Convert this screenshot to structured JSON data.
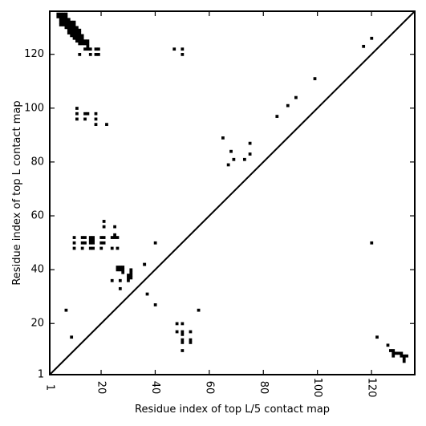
{
  "chart_data": {
    "type": "scatter",
    "xlabel": "Residue index of top L/5 contact map",
    "ylabel": "Residue index of top L contact map",
    "xlim": [
      1,
      136
    ],
    "ylim": [
      1,
      136
    ],
    "x_ticks": [
      1,
      20,
      40,
      60,
      80,
      100,
      120
    ],
    "y_ticks": [
      1,
      20,
      40,
      60,
      80,
      100,
      120
    ],
    "x_tick_labels": [
      "1",
      "20",
      "40",
      "60",
      "80",
      "100",
      "120"
    ],
    "y_tick_labels": [
      "1",
      "20",
      "40",
      "60",
      "80",
      "100",
      "120"
    ],
    "diagonal_line": true,
    "grid": false,
    "marker": "square",
    "colors": {
      "marker": "#000000",
      "axis": "#000000"
    },
    "series": [
      {
        "points_upper": [
          [
            4,
            135
          ],
          [
            5,
            135
          ],
          [
            6,
            135
          ],
          [
            7,
            135
          ],
          [
            4,
            134
          ],
          [
            5,
            134
          ],
          [
            6,
            134
          ],
          [
            7,
            134
          ],
          [
            5,
            133
          ],
          [
            6,
            133
          ],
          [
            7,
            133
          ],
          [
            8,
            133
          ],
          [
            5,
            132
          ],
          [
            6,
            132
          ],
          [
            7,
            132
          ],
          [
            8,
            132
          ],
          [
            9,
            132
          ],
          [
            10,
            132
          ],
          [
            5,
            131
          ],
          [
            6,
            131
          ],
          [
            7,
            131
          ],
          [
            8,
            131
          ],
          [
            9,
            131
          ],
          [
            10,
            131
          ],
          [
            7,
            130
          ],
          [
            8,
            130
          ],
          [
            9,
            130
          ],
          [
            10,
            130
          ],
          [
            11,
            130
          ],
          [
            8,
            129
          ],
          [
            9,
            129
          ],
          [
            10,
            129
          ],
          [
            11,
            129
          ],
          [
            12,
            129
          ],
          [
            8,
            128
          ],
          [
            9,
            128
          ],
          [
            10,
            128
          ],
          [
            11,
            128
          ],
          [
            12,
            128
          ],
          [
            9,
            127
          ],
          [
            10,
            127
          ],
          [
            11,
            127
          ],
          [
            12,
            127
          ],
          [
            13,
            127
          ],
          [
            10,
            126
          ],
          [
            11,
            126
          ],
          [
            12,
            126
          ],
          [
            13,
            126
          ],
          [
            11,
            125
          ],
          [
            12,
            125
          ],
          [
            13,
            125
          ],
          [
            14,
            125
          ],
          [
            15,
            125
          ],
          [
            12,
            124
          ],
          [
            13,
            124
          ],
          [
            14,
            124
          ],
          [
            15,
            124
          ],
          [
            15,
            123
          ],
          [
            14,
            122
          ],
          [
            15,
            122
          ],
          [
            16,
            122
          ],
          [
            18,
            122
          ],
          [
            19,
            122
          ],
          [
            12,
            120
          ],
          [
            16,
            120
          ],
          [
            18,
            120
          ],
          [
            19,
            120
          ],
          [
            47,
            122
          ],
          [
            50,
            122
          ],
          [
            50,
            120
          ],
          [
            120,
            126
          ],
          [
            117,
            123
          ],
          [
            99,
            111
          ],
          [
            11,
            100
          ],
          [
            11,
            98
          ],
          [
            14,
            98
          ],
          [
            15,
            98
          ],
          [
            18,
            98
          ],
          [
            11,
            96
          ],
          [
            14,
            96
          ],
          [
            18,
            96
          ],
          [
            18,
            94
          ],
          [
            22,
            94
          ],
          [
            92,
            104
          ],
          [
            89,
            101
          ],
          [
            85,
            97
          ],
          [
            65,
            89
          ],
          [
            75,
            87
          ],
          [
            68,
            84
          ],
          [
            75,
            83
          ],
          [
            69,
            81
          ],
          [
            73,
            81
          ],
          [
            67,
            79
          ],
          [
            21,
            58
          ],
          [
            21,
            56
          ],
          [
            25,
            56
          ],
          [
            25,
            53
          ],
          [
            10,
            52
          ],
          [
            13,
            52
          ],
          [
            14,
            52
          ],
          [
            16,
            52
          ],
          [
            17,
            52
          ],
          [
            20,
            52
          ],
          [
            21,
            52
          ],
          [
            24,
            52
          ],
          [
            25,
            52
          ],
          [
            26,
            52
          ],
          [
            16,
            51
          ],
          [
            17,
            51
          ],
          [
            10,
            50
          ],
          [
            13,
            50
          ],
          [
            14,
            50
          ],
          [
            16,
            50
          ],
          [
            17,
            50
          ],
          [
            20,
            50
          ],
          [
            21,
            50
          ],
          [
            40,
            50
          ],
          [
            10,
            48
          ],
          [
            13,
            48
          ],
          [
            16,
            48
          ],
          [
            17,
            48
          ],
          [
            20,
            48
          ],
          [
            24,
            48
          ],
          [
            26,
            48
          ],
          [
            26,
            41
          ],
          [
            27,
            41
          ],
          [
            28,
            41
          ],
          [
            26,
            40
          ],
          [
            27,
            40
          ],
          [
            28,
            40
          ],
          [
            31,
            40
          ],
          [
            28,
            39
          ],
          [
            31,
            39
          ],
          [
            30,
            38
          ],
          [
            31,
            38
          ],
          [
            30,
            37
          ],
          [
            31,
            37
          ],
          [
            30,
            36
          ],
          [
            36,
            42
          ],
          [
            36,
            42
          ],
          [
            24,
            36
          ],
          [
            27,
            36
          ],
          [
            27,
            33
          ],
          [
            37,
            31
          ]
        ]
      },
      {
        "points_lower": [
          [
            7,
            25
          ],
          [
            9,
            15
          ],
          [
            40,
            27
          ],
          [
            56,
            25
          ],
          [
            48,
            20
          ],
          [
            50,
            20
          ],
          [
            48,
            17
          ],
          [
            50,
            17
          ],
          [
            53,
            17
          ],
          [
            50,
            16
          ],
          [
            50,
            14
          ],
          [
            50,
            13
          ],
          [
            53,
            14
          ],
          [
            53,
            13
          ],
          [
            50,
            10
          ],
          [
            120,
            50
          ],
          [
            122,
            15
          ],
          [
            126,
            12
          ],
          [
            127,
            10
          ],
          [
            128,
            10
          ],
          [
            128,
            9
          ],
          [
            129,
            9
          ],
          [
            130,
            9
          ],
          [
            131,
            9
          ],
          [
            128,
            8
          ],
          [
            131,
            8
          ],
          [
            132,
            8
          ],
          [
            133,
            8
          ],
          [
            132,
            7
          ],
          [
            132,
            6
          ]
        ]
      }
    ]
  }
}
